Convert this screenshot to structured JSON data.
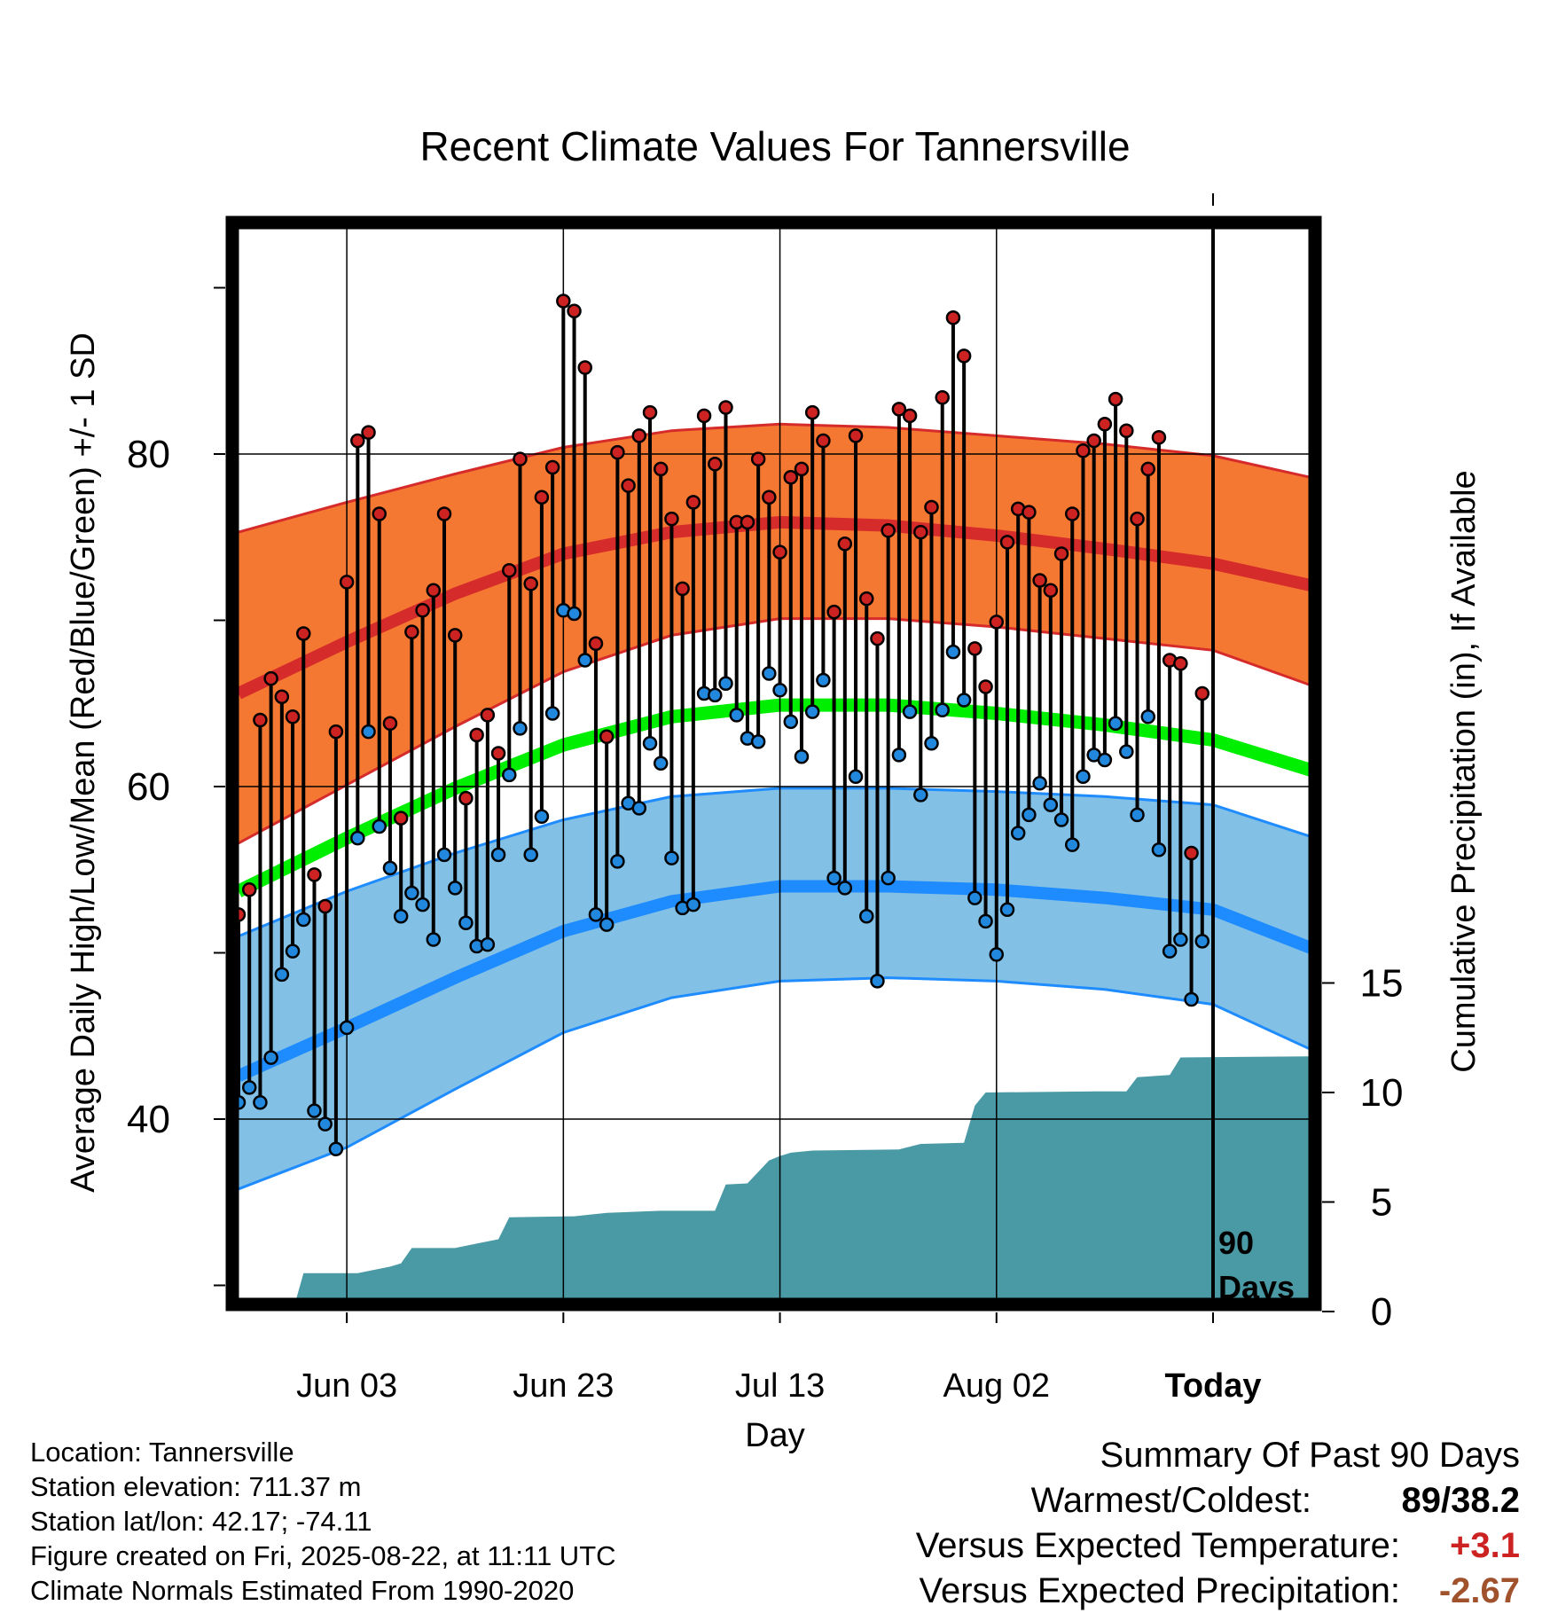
{
  "chart_data": {
    "type": "line",
    "title": "Recent Climate Values For Tannersville",
    "xlabel": "Day",
    "ylabel": "Average Daily High/Low/Mean (Red/Blue/Green) +/- 1 SD",
    "y2label": "Cumulative Precipitation (in), If Available",
    "ylim": [
      28,
      93
    ],
    "y2lim": [
      0,
      17
    ],
    "y_ticks": [
      40,
      60,
      80
    ],
    "y_minor_ticks": [
      30,
      50,
      70,
      90
    ],
    "y2_ticks": [
      0,
      5,
      10,
      15
    ],
    "x_range": [
      "May 24",
      "Aug 31"
    ],
    "x_ticks": [
      {
        "date": "Jun 03",
        "label": "Jun 03"
      },
      {
        "date": "Jun 23",
        "label": "Jun 23"
      },
      {
        "date": "Jul 13",
        "label": "Jul 13"
      },
      {
        "date": "Aug 02",
        "label": "Aug 02"
      },
      {
        "date": "Aug 22",
        "label": "Today"
      }
    ],
    "grid": true,
    "today": "Aug 22",
    "today_label": [
      "90",
      "Days"
    ],
    "colors": {
      "high_band": "#f57832",
      "high_mean": "#d62b2b",
      "low_band": "#82c0e6",
      "low_mean": "#1e8cff",
      "mean_line": "#00ee00",
      "precip": "#4a9aa5",
      "high_point": "#cc2222",
      "low_point": "#2288dd"
    },
    "normals": {
      "dates": [
        "May 24",
        "Jun 03",
        "Jun 13",
        "Jun 23",
        "Jul 03",
        "Jul 13",
        "Jul 23",
        "Aug 02",
        "Aug 12",
        "Aug 22",
        "Aug 31"
      ],
      "high_mean": [
        65.6,
        68.7,
        71.6,
        74.0,
        75.3,
        75.9,
        75.7,
        75.1,
        74.3,
        73.4,
        72.1
      ],
      "high_upper": [
        75.3,
        77.1,
        78.8,
        80.4,
        81.4,
        81.8,
        81.6,
        81.1,
        80.6,
        79.9,
        78.6
      ],
      "high_lower": [
        56.6,
        60.1,
        63.6,
        66.9,
        69.1,
        70.1,
        70.1,
        69.6,
        68.9,
        68.2,
        66.1
      ],
      "mean": [
        53.7,
        56.9,
        59.9,
        62.5,
        64.2,
        64.9,
        64.9,
        64.4,
        63.7,
        62.8,
        61.0
      ],
      "low_mean": [
        42.6,
        45.5,
        48.5,
        51.3,
        53.1,
        54.0,
        54.0,
        53.8,
        53.3,
        52.6,
        50.3
      ],
      "low_upper": [
        51.0,
        53.7,
        56.0,
        58.0,
        59.4,
        59.9,
        59.9,
        59.7,
        59.4,
        58.9,
        57.0
      ],
      "low_lower": [
        35.8,
        38.3,
        41.8,
        45.2,
        47.3,
        48.3,
        48.5,
        48.3,
        47.8,
        46.9,
        44.2
      ]
    },
    "observed": {
      "dates": [
        "May 24",
        "May 25",
        "May 26",
        "May 27",
        "May 28",
        "May 29",
        "May 30",
        "May 31",
        "Jun 01",
        "Jun 02",
        "Jun 03",
        "Jun 04",
        "Jun 05",
        "Jun 06",
        "Jun 07",
        "Jun 08",
        "Jun 09",
        "Jun 10",
        "Jun 11",
        "Jun 12",
        "Jun 13",
        "Jun 14",
        "Jun 15",
        "Jun 16",
        "Jun 17",
        "Jun 18",
        "Jun 19",
        "Jun 20",
        "Jun 21",
        "Jun 22",
        "Jun 23",
        "Jun 24",
        "Jun 25",
        "Jun 26",
        "Jun 27",
        "Jun 28",
        "Jun 29",
        "Jun 30",
        "Jul 01",
        "Jul 02",
        "Jul 03",
        "Jul 04",
        "Jul 05",
        "Jul 06",
        "Jul 07",
        "Jul 08",
        "Jul 09",
        "Jul 10",
        "Jul 11",
        "Jul 12",
        "Jul 13",
        "Jul 14",
        "Jul 15",
        "Jul 16",
        "Jul 17",
        "Jul 18",
        "Jul 19",
        "Jul 20",
        "Jul 21",
        "Jul 22",
        "Jul 23",
        "Jul 24",
        "Jul 25",
        "Jul 26",
        "Jul 27",
        "Jul 28",
        "Jul 29",
        "Jul 30",
        "Jul 31",
        "Aug 01",
        "Aug 02",
        "Aug 03",
        "Aug 04",
        "Aug 05",
        "Aug 06",
        "Aug 07",
        "Aug 08",
        "Aug 09",
        "Aug 10",
        "Aug 11",
        "Aug 12",
        "Aug 13",
        "Aug 14",
        "Aug 15",
        "Aug 16",
        "Aug 17",
        "Aug 18",
        "Aug 19",
        "Aug 20",
        "Aug 21"
      ],
      "high": [
        52.3,
        53.8,
        64.0,
        66.5,
        65.4,
        64.2,
        69.2,
        54.7,
        52.8,
        63.3,
        72.3,
        80.8,
        81.3,
        76.4,
        63.8,
        58.1,
        69.3,
        70.6,
        71.8,
        76.4,
        69.1,
        59.3,
        63.1,
        64.3,
        62.0,
        73.0,
        79.7,
        72.2,
        77.4,
        79.2,
        89.2,
        88.6,
        85.2,
        68.6,
        63.0,
        80.1,
        78.1,
        81.1,
        82.5,
        79.1,
        76.1,
        71.9,
        77.1,
        82.3,
        79.4,
        82.8,
        75.9,
        75.9,
        79.7,
        77.4,
        74.1,
        78.6,
        79.1,
        82.5,
        80.8,
        70.5,
        74.6,
        81.1,
        71.3,
        68.9,
        75.4,
        82.7,
        82.3,
        75.3,
        76.8,
        83.4,
        88.2,
        85.9,
        68.3,
        66.0,
        69.9,
        74.7,
        76.7,
        76.5,
        72.4,
        71.8,
        74.0,
        76.4,
        80.2,
        80.8,
        81.8,
        83.3,
        81.4,
        76.1,
        79.1,
        81.0,
        67.6,
        67.4,
        56.0,
        65.6
      ],
      "low": [
        41.0,
        41.9,
        41.0,
        43.7,
        48.7,
        50.1,
        52.0,
        40.5,
        39.7,
        38.2,
        45.5,
        56.9,
        63.3,
        57.6,
        55.1,
        52.2,
        53.6,
        52.9,
        50.8,
        55.9,
        53.9,
        51.8,
        50.4,
        50.5,
        55.9,
        60.7,
        63.5,
        55.9,
        58.2,
        64.4,
        70.6,
        70.4,
        67.6,
        52.3,
        51.7,
        55.5,
        59.0,
        58.7,
        62.6,
        61.4,
        55.7,
        52.7,
        52.9,
        65.6,
        65.5,
        66.2,
        64.3,
        62.9,
        62.7,
        66.8,
        65.8,
        63.9,
        61.8,
        64.5,
        66.4,
        54.5,
        53.9,
        60.6,
        52.2,
        48.3,
        54.5,
        61.9,
        64.5,
        59.5,
        62.6,
        64.6,
        68.1,
        65.2,
        53.3,
        51.9,
        49.9,
        52.6,
        57.2,
        58.3,
        60.2,
        58.9,
        58.0,
        56.5,
        60.6,
        61.9,
        61.6,
        63.8,
        62.1,
        58.3,
        64.2,
        56.2,
        50.1,
        50.8,
        47.2,
        50.7
      ]
    },
    "precipitation": {
      "dates": [
        "May 24",
        "May 29",
        "May 30",
        "Jun 04",
        "Jun 07",
        "Jun 08",
        "Jun 09",
        "Jun 13",
        "Jun 15",
        "Jun 17",
        "Jun 18",
        "Jun 24",
        "Jun 27",
        "Jul 02",
        "Jul 07",
        "Jul 08",
        "Jul 10",
        "Jul 12",
        "Jul 13",
        "Jul 14",
        "Jul 16",
        "Jul 24",
        "Jul 26",
        "Jul 30",
        "Jul 31",
        "Aug 01",
        "Aug 11",
        "Aug 14",
        "Aug 15",
        "Aug 18",
        "Aug 19",
        "Aug 31"
      ],
      "cumulative": [
        0,
        0,
        1.75,
        1.75,
        2.05,
        2.2,
        2.9,
        2.9,
        3.1,
        3.3,
        4.3,
        4.35,
        4.5,
        4.6,
        4.6,
        5.8,
        5.85,
        6.9,
        7.1,
        7.25,
        7.35,
        7.4,
        7.65,
        7.7,
        9.4,
        10.0,
        10.05,
        10.05,
        10.7,
        10.8,
        11.6,
        11.65
      ]
    }
  },
  "info": {
    "location": "Location: Tannersville",
    "elevation": "Station elevation: 711.37 m",
    "latlon": "Station lat/lon: 42.17; -74.11",
    "created": "Figure created on Fri, 2025-08-22, at 11:11 UTC",
    "normals": "Climate Normals Estimated From 1990-2020"
  },
  "summary": {
    "title": "Summary Of Past 90 Days",
    "warmest_label": "Warmest/Coldest:",
    "warmest_value": "89/38.2",
    "temp_label": "Versus Expected Temperature:",
    "temp_value": "+3.1",
    "temp_color": "#cc2222",
    "precip_label": "Versus Expected Precipitation:",
    "precip_value": "-2.67",
    "precip_color": "#a0522d"
  }
}
